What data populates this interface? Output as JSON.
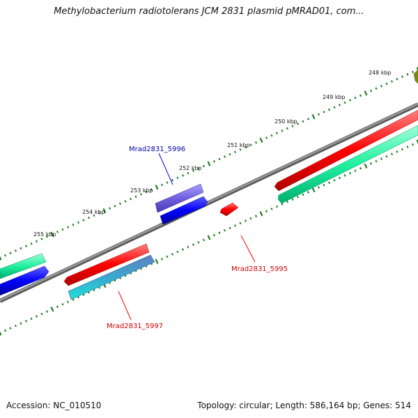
{
  "title": "Methylobacterium radiotolerans JCM 2831 plasmid pMRAD01, com...",
  "footer": {
    "accession": "Accession: NC_010510",
    "summary": "Topology: circular; Length: 586,164 bp; Genes: 514"
  },
  "colors": {
    "backbone": "#808080",
    "tick": "#1f7a1f",
    "gene_red": "#ff0000",
    "gene_blue": "#0000ff",
    "gene_cyan": "#22d8c8",
    "gene_teal": "#00e68a",
    "gene_violet": "#7060e0",
    "label_blue": "#0000aa",
    "label_red": "#cc0000"
  },
  "kbp_labels": [
    "248 kbp",
    "249 kbp",
    "250 kbp",
    "251 kbp",
    "252 kbp",
    "253 kbp",
    "254 kbp",
    "255 kbp"
  ],
  "gene_labels": [
    {
      "text": "Mrad2831_5996",
      "color": "blue"
    },
    {
      "text": "Mrad2831_5995",
      "color": "red"
    },
    {
      "text": "Mrad2831_5997",
      "color": "red"
    }
  ]
}
